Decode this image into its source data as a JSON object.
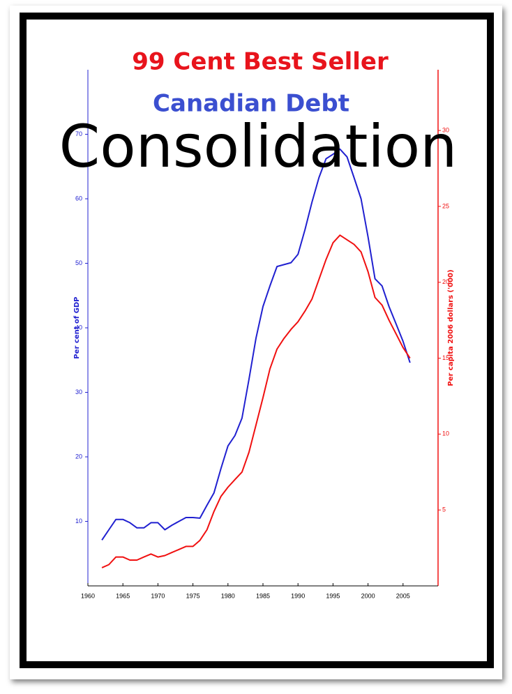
{
  "chart_data": {
    "type": "line",
    "tagline": "99 Cent Best Seller",
    "subtitle": "Canadian Debt",
    "title": "Consolidation",
    "y_label": "Per cent of GDP",
    "y2_label": "Per capita 2006 dollars ('000)",
    "x": [
      1962,
      1963,
      1964,
      1965,
      1966,
      1967,
      1968,
      1969,
      1970,
      1971,
      1972,
      1973,
      1974,
      1975,
      1976,
      1977,
      1978,
      1979,
      1980,
      1981,
      1982,
      1983,
      1984,
      1985,
      1986,
      1987,
      1988,
      1989,
      1990,
      1991,
      1992,
      1993,
      1994,
      1995,
      1996,
      1997,
      1998,
      1999,
      2000,
      2001,
      2002,
      2003,
      2004,
      2005,
      2006
    ],
    "series": [
      {
        "color": "#2020d0",
        "axis": "y",
        "values": [
          7.1,
          8.7,
          10.3,
          10.3,
          9.8,
          9,
          9,
          9.8,
          9.8,
          8.7,
          9.4,
          10,
          10.6,
          10.6,
          10.5,
          12.5,
          14.4,
          18.2,
          21.7,
          23.3,
          26,
          32,
          38.4,
          43.3,
          46.5,
          49.5,
          49.8,
          50.1,
          51.4,
          55.2,
          59.5,
          63.3,
          66.2,
          66.9,
          67.7,
          66.5,
          63.3,
          60,
          54.1,
          47.6,
          46.5,
          43.3,
          40.6,
          37.9,
          34.6
        ]
      },
      {
        "color": "#f01010",
        "axis": "y2",
        "values": [
          1.2,
          1.4,
          1.9,
          1.9,
          1.7,
          1.7,
          1.9,
          2.1,
          1.9,
          2,
          2.2,
          2.4,
          2.6,
          2.6,
          3,
          3.7,
          4.9,
          5.9,
          6.5,
          7,
          7.5,
          8.8,
          10.6,
          12.4,
          14.3,
          15.6,
          16.3,
          16.9,
          17.4,
          18.1,
          18.9,
          20.2,
          21.5,
          22.6,
          23.1,
          22.8,
          22.5,
          22,
          20.7,
          19,
          18.5,
          17.5,
          16.6,
          15.7,
          15
        ]
      }
    ],
    "xlim": [
      1960,
      2010
    ],
    "xticks": [
      1960,
      1965,
      1970,
      1975,
      1980,
      1985,
      1990,
      1995,
      2000,
      2005
    ],
    "ylim": [
      0,
      80
    ],
    "yticks": [
      10,
      20,
      30,
      40,
      50,
      60,
      70
    ],
    "y2lim": [
      0,
      34
    ],
    "y2ticks": [
      5,
      10,
      15,
      20,
      25,
      30
    ],
    "y_color": "#2020d0",
    "y2_color": "#f01010"
  }
}
